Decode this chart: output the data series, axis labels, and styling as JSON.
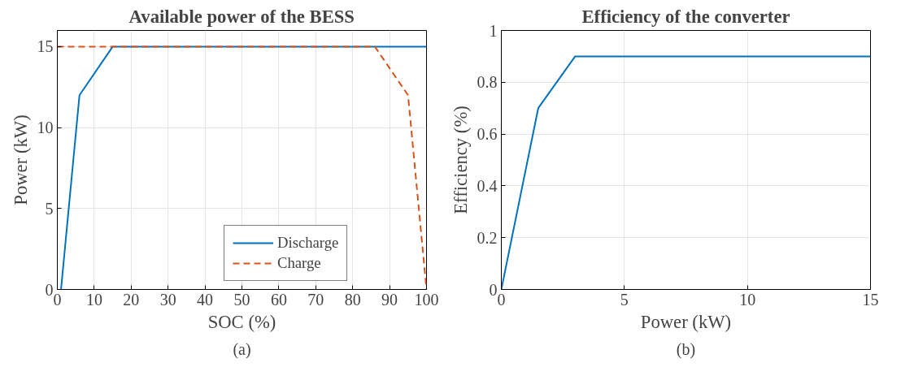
{
  "chart_data": [
    {
      "type": "line",
      "title": "Available power of the BESS",
      "xlabel": "SOC (%)",
      "ylabel": "Power (kW)",
      "xlim": [
        0,
        100
      ],
      "ylim": [
        0,
        16
      ],
      "xticks": [
        0,
        10,
        20,
        30,
        40,
        50,
        60,
        70,
        80,
        90,
        100
      ],
      "yticks": [
        0,
        5,
        10,
        15
      ],
      "grid": true,
      "legend": "bottom",
      "annotations": [
        "(a)"
      ],
      "series": [
        {
          "name": "Discharge",
          "color": "#0072bd",
          "line_style": "solid",
          "x": [
            1,
            6,
            15,
            100
          ],
          "values": [
            0,
            12,
            15,
            15
          ]
        },
        {
          "name": "Charge",
          "color": "#d95319",
          "line_style": "dashed",
          "x": [
            0,
            86,
            95,
            100
          ],
          "values": [
            15,
            15,
            12,
            0
          ]
        }
      ]
    },
    {
      "type": "line",
      "title": "Efficiency of the converter",
      "xlabel": "Power (kW)",
      "ylabel": "Efficiency (%)",
      "xlim": [
        0,
        15
      ],
      "ylim": [
        0,
        1
      ],
      "xticks": [
        0,
        5,
        10,
        15
      ],
      "yticks": [
        0,
        0.2,
        0.4,
        0.6,
        0.8,
        1
      ],
      "grid": true,
      "annotations": [
        "(b)"
      ],
      "series": [
        {
          "color": "#0072bd",
          "line_style": "solid",
          "x": [
            0,
            1.5,
            3,
            15
          ],
          "values": [
            0,
            0.7,
            0.9,
            0.9
          ]
        }
      ]
    }
  ]
}
